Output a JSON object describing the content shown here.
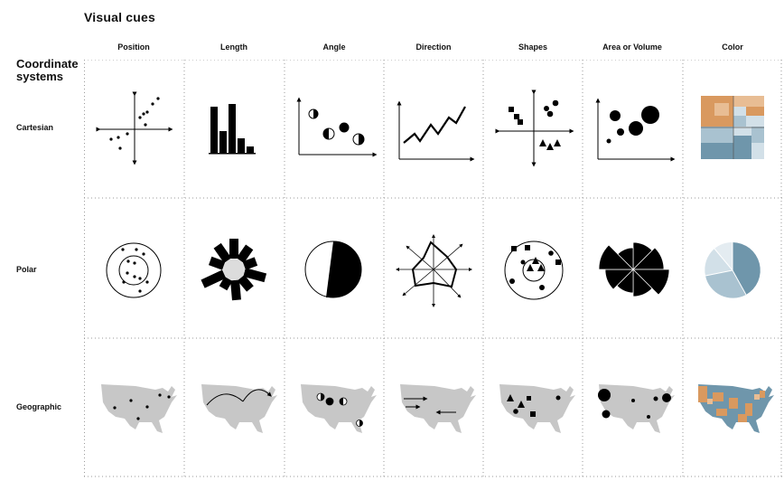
{
  "title": "Visual cues",
  "coordinate_systems_label": "Coordinate systems",
  "columns": [
    "Position",
    "Length",
    "Angle",
    "Direction",
    "Shapes",
    "Area or Volume",
    "Color"
  ],
  "rows": [
    "Cartesian",
    "Polar",
    "Geographic"
  ],
  "colors": {
    "ink": "#000000",
    "grid_dots": "#9a9a9a",
    "map_gray": "#c7c7c7",
    "orange": "#d9995f",
    "orange_light": "#e8bd94",
    "blue": "#6f96ab",
    "blue_light": "#a9c2d0",
    "blue_pale": "#d2e0e8"
  },
  "cells": [
    [
      "position-cartesian",
      "length-cartesian",
      "angle-cartesian",
      "direction-cartesian",
      "shapes-cartesian",
      "area-cartesian",
      "color-cartesian"
    ],
    [
      "position-polar",
      "length-polar",
      "angle-polar",
      "direction-polar",
      "shapes-polar",
      "area-polar",
      "color-polar"
    ],
    [
      "position-geographic",
      "length-geographic",
      "angle-geographic",
      "direction-geographic",
      "shapes-geographic",
      "area-geographic",
      "color-geographic"
    ]
  ]
}
